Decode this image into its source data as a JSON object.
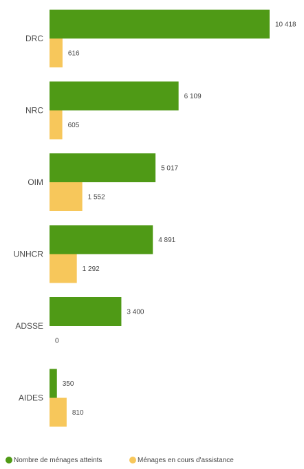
{
  "chart_data": {
    "type": "bar",
    "orientation": "horizontal",
    "categories": [
      "DRC",
      "NRC",
      "OIM",
      "UNHCR",
      "ADSSE",
      "AIDES"
    ],
    "series": [
      {
        "name": "Nombre de ménages atteints",
        "color": "#4f9a16",
        "values": [
          10418,
          6109,
          5017,
          4891,
          3400,
          350
        ],
        "labels": [
          "10 418",
          "6 109",
          "5 017",
          "4 891",
          "3 400",
          "350"
        ]
      },
      {
        "name": "Ménages en cours d'assistance",
        "color": "#f7c75b",
        "values": [
          616,
          605,
          1552,
          1292,
          0,
          810
        ],
        "labels": [
          "616",
          "605",
          "1 552",
          "1 292",
          "0",
          "810"
        ]
      }
    ],
    "xlim": [
      0,
      10418
    ],
    "grid": false,
    "legend": "bottom"
  }
}
